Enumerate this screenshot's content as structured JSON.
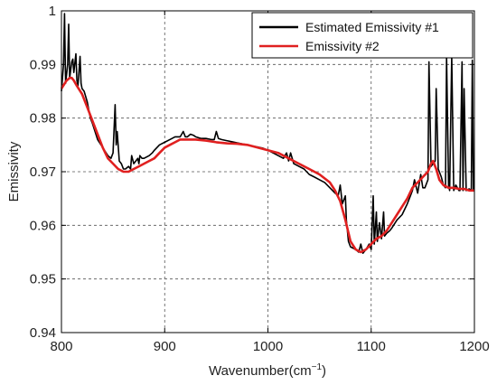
{
  "chart_data": {
    "type": "line",
    "title": "",
    "xlabel": "Wavenumber(cm",
    "xlabel_superscript": "−1",
    "xlabel_suffix": ")",
    "ylabel": "Emissivity",
    "xlim": [
      800,
      1200
    ],
    "ylim": [
      0.94,
      1.0
    ],
    "xticks": [
      800,
      900,
      1000,
      1100,
      1200
    ],
    "xtick_labels": [
      "800",
      "900",
      "1000",
      "1100",
      "1200"
    ],
    "yticks": [
      0.94,
      0.95,
      0.96,
      0.97,
      0.98,
      0.99,
      1.0
    ],
    "ytick_labels": [
      "0.94",
      "0.95",
      "0.96",
      "0.97",
      "0.98",
      "0.99",
      "1"
    ],
    "grid": true,
    "legend_position": "top-right",
    "series": [
      {
        "name": "Estimated Emissivity #1",
        "color": "#000000",
        "x": [
          800,
          802,
          803,
          804,
          806,
          807,
          808,
          810,
          811,
          812,
          814,
          815,
          816,
          818,
          819,
          820,
          822,
          825,
          828,
          830,
          835,
          840,
          845,
          848,
          850,
          852,
          853,
          854,
          856,
          858,
          860,
          862,
          865,
          867,
          868,
          870,
          872,
          874,
          875,
          876,
          878,
          880,
          885,
          888,
          890,
          895,
          900,
          905,
          910,
          915,
          918,
          920,
          922,
          925,
          928,
          930,
          935,
          940,
          945,
          948,
          950,
          952,
          955,
          960,
          965,
          970,
          975,
          980,
          985,
          990,
          995,
          1000,
          1005,
          1010,
          1015,
          1018,
          1020,
          1022,
          1025,
          1030,
          1035,
          1040,
          1045,
          1050,
          1055,
          1060,
          1065,
          1068,
          1070,
          1072,
          1075,
          1076,
          1078,
          1080,
          1085,
          1088,
          1090,
          1092,
          1095,
          1098,
          1100,
          1102,
          1103,
          1105,
          1106,
          1108,
          1110,
          1112,
          1113,
          1115,
          1118,
          1120,
          1125,
          1130,
          1135,
          1138,
          1140,
          1142,
          1145,
          1148,
          1150,
          1152,
          1155,
          1156,
          1158,
          1160,
          1162,
          1163,
          1165,
          1168,
          1170,
          1172,
          1173,
          1175,
          1176,
          1178,
          1180,
          1182,
          1185,
          1186,
          1188,
          1189,
          1190,
          1192,
          1195,
          1197,
          1198,
          1199,
          1200
        ],
        "y": [
          0.985,
          0.99,
          0.9995,
          0.9865,
          0.99,
          0.9975,
          0.9875,
          0.9905,
          0.991,
          0.9885,
          0.992,
          0.987,
          0.986,
          0.9915,
          0.9865,
          0.9855,
          0.985,
          0.983,
          0.98,
          0.979,
          0.976,
          0.9745,
          0.973,
          0.9725,
          0.9735,
          0.9825,
          0.975,
          0.9775,
          0.972,
          0.9715,
          0.9705,
          0.9705,
          0.971,
          0.9705,
          0.973,
          0.9715,
          0.972,
          0.9725,
          0.9715,
          0.973,
          0.9725,
          0.9725,
          0.973,
          0.9735,
          0.974,
          0.975,
          0.9755,
          0.976,
          0.9765,
          0.9765,
          0.9775,
          0.9765,
          0.9765,
          0.977,
          0.9768,
          0.9765,
          0.9762,
          0.9762,
          0.976,
          0.976,
          0.9775,
          0.9762,
          0.976,
          0.9758,
          0.9756,
          0.9754,
          0.9752,
          0.975,
          0.9748,
          0.9746,
          0.9744,
          0.974,
          0.9735,
          0.973,
          0.9725,
          0.9735,
          0.972,
          0.9735,
          0.9715,
          0.971,
          0.9705,
          0.9695,
          0.969,
          0.9685,
          0.968,
          0.967,
          0.966,
          0.9655,
          0.9675,
          0.964,
          0.9655,
          0.961,
          0.957,
          0.956,
          0.9555,
          0.955,
          0.9565,
          0.9548,
          0.9555,
          0.9565,
          0.9555,
          0.9655,
          0.9565,
          0.9625,
          0.957,
          0.9605,
          0.9575,
          0.9625,
          0.958,
          0.9585,
          0.959,
          0.9595,
          0.961,
          0.962,
          0.964,
          0.9655,
          0.9665,
          0.9685,
          0.966,
          0.9695,
          0.967,
          0.967,
          0.9685,
          0.9905,
          0.971,
          0.9715,
          0.972,
          0.9855,
          0.9705,
          0.969,
          0.9675,
          0.967,
          0.9915,
          0.9675,
          0.9665,
          0.9915,
          0.9665,
          0.9675,
          0.9665,
          0.9665,
          0.9905,
          0.9665,
          0.9855,
          0.9665,
          0.9668,
          0.9665,
          0.9908,
          0.9665,
          0.9665
        ]
      },
      {
        "name": "Emissivity #2",
        "color": "#e02020",
        "x": [
          800,
          805,
          808,
          810,
          812,
          815,
          820,
          825,
          830,
          835,
          840,
          845,
          850,
          855,
          860,
          865,
          870,
          875,
          880,
          885,
          890,
          895,
          900,
          905,
          910,
          915,
          920,
          925,
          930,
          940,
          950,
          960,
          970,
          980,
          990,
          1000,
          1010,
          1020,
          1030,
          1040,
          1050,
          1060,
          1065,
          1070,
          1075,
          1080,
          1085,
          1090,
          1095,
          1100,
          1105,
          1110,
          1115,
          1120,
          1125,
          1130,
          1135,
          1140,
          1145,
          1150,
          1155,
          1158,
          1160,
          1163,
          1166,
          1170,
          1175,
          1180,
          1185,
          1190,
          1195,
          1200
        ],
        "y": [
          0.9855,
          0.987,
          0.9875,
          0.9875,
          0.987,
          0.986,
          0.9845,
          0.982,
          0.9795,
          0.977,
          0.9745,
          0.9725,
          0.9715,
          0.9705,
          0.97,
          0.97,
          0.9705,
          0.971,
          0.9715,
          0.972,
          0.9725,
          0.9735,
          0.9745,
          0.975,
          0.9755,
          0.976,
          0.976,
          0.976,
          0.976,
          0.9758,
          0.9755,
          0.9753,
          0.9752,
          0.975,
          0.9745,
          0.974,
          0.9735,
          0.9725,
          0.9715,
          0.9705,
          0.9695,
          0.968,
          0.9665,
          0.9645,
          0.961,
          0.957,
          0.9555,
          0.955,
          0.9555,
          0.9565,
          0.9575,
          0.958,
          0.959,
          0.9605,
          0.962,
          0.9635,
          0.965,
          0.967,
          0.968,
          0.969,
          0.97,
          0.9715,
          0.972,
          0.9705,
          0.9685,
          0.9675,
          0.967,
          0.967,
          0.9668,
          0.9668,
          0.9665,
          0.9665
        ]
      }
    ]
  }
}
